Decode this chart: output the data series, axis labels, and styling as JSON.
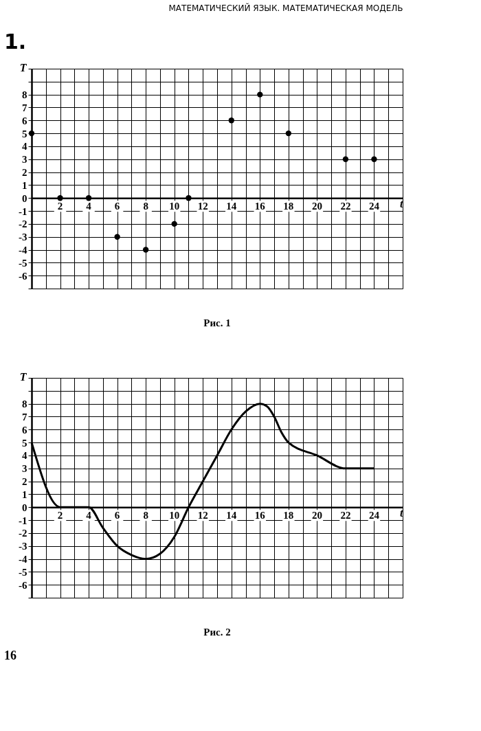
{
  "chart_data": [
    {
      "type": "scatter",
      "title": "МАТЕМАТИЧЕСКИЙ ЯЗЫК. МАТЕМАТИЧЕСКАЯ МОДЕЛЬ",
      "xlabel": "t",
      "ylabel": "T",
      "annotations": [
        "1.",
        "Рис. 1"
      ],
      "series": [
        {
          "color": "#000000",
          "x": [
            0,
            2,
            4,
            6,
            8,
            10,
            11,
            14,
            16,
            18,
            22,
            24
          ],
          "values": [
            5,
            0,
            0,
            -3,
            -4,
            -2,
            0,
            6,
            8,
            5,
            3,
            3
          ]
        }
      ],
      "marker": "circle",
      "grid": true,
      "xlim": [
        0,
        26
      ],
      "ylim": [
        -7,
        10
      ],
      "xticks": [
        {
          "value": 0,
          "label": null
        },
        {
          "value": 1,
          "label": null
        },
        2,
        {
          "value": 3,
          "label": null
        },
        4,
        {
          "value": 5,
          "label": null
        },
        6,
        {
          "value": 7,
          "label": null
        },
        8,
        {
          "value": 9,
          "label": null
        },
        10,
        {
          "value": 11,
          "label": null
        },
        12,
        {
          "value": 13,
          "label": null
        },
        14,
        {
          "value": 15,
          "label": null
        },
        16,
        {
          "value": 17,
          "label": null
        },
        18,
        {
          "value": 19,
          "label": null
        },
        20,
        {
          "value": 21,
          "label": null
        },
        22,
        {
          "value": 23,
          "label": null
        },
        24,
        {
          "value": 25,
          "label": null
        },
        {
          "value": 26,
          "label": null
        }
      ],
      "yticks": [
        {
          "value": -7,
          "label": null
        },
        -6,
        -5,
        -4,
        -3,
        -2,
        -1,
        0,
        1,
        2,
        3,
        4,
        5,
        6,
        7,
        8,
        {
          "value": 9,
          "label": null
        },
        {
          "value": 10,
          "label": null
        }
      ]
    },
    {
      "type": "line",
      "xlabel": "t",
      "ylabel": "T",
      "annotations": [
        "Рис. 2",
        "16"
      ],
      "series": [
        {
          "color": "#000000",
          "x": [
            0,
            2,
            4,
            5,
            6,
            7,
            8,
            9,
            10,
            11,
            12,
            13,
            14,
            15,
            16,
            16.5,
            17,
            17.5,
            18,
            20,
            22,
            24
          ],
          "values": [
            5,
            0,
            0,
            -1.6,
            -3,
            -3.7,
            -4,
            -3.6,
            -2.3,
            0,
            2,
            4,
            6,
            7.4,
            8,
            7.8,
            7,
            5.8,
            5,
            4,
            3,
            3
          ]
        }
      ],
      "marker": "none",
      "line_style": "solid",
      "grid": true,
      "xlim": [
        0,
        26
      ],
      "ylim": [
        -7,
        10
      ],
      "xticks": [
        {
          "value": 0,
          "label": null
        },
        {
          "value": 1,
          "label": null
        },
        2,
        {
          "value": 3,
          "label": null
        },
        4,
        {
          "value": 5,
          "label": null
        },
        6,
        {
          "value": 7,
          "label": null
        },
        8,
        {
          "value": 9,
          "label": null
        },
        10,
        {
          "value": 11,
          "label": null
        },
        12,
        {
          "value": 13,
          "label": null
        },
        14,
        {
          "value": 15,
          "label": null
        },
        16,
        {
          "value": 17,
          "label": null
        },
        18,
        {
          "value": 19,
          "label": null
        },
        20,
        {
          "value": 21,
          "label": null
        },
        22,
        {
          "value": 23,
          "label": null
        },
        24,
        {
          "value": 25,
          "label": null
        },
        {
          "value": 26,
          "label": null
        }
      ],
      "yticks": [
        {
          "value": -7,
          "label": null
        },
        -6,
        -5,
        -4,
        -3,
        -2,
        -1,
        0,
        1,
        2,
        3,
        4,
        5,
        6,
        7,
        8,
        {
          "value": 9,
          "label": null
        },
        {
          "value": 10,
          "label": null
        }
      ]
    }
  ]
}
